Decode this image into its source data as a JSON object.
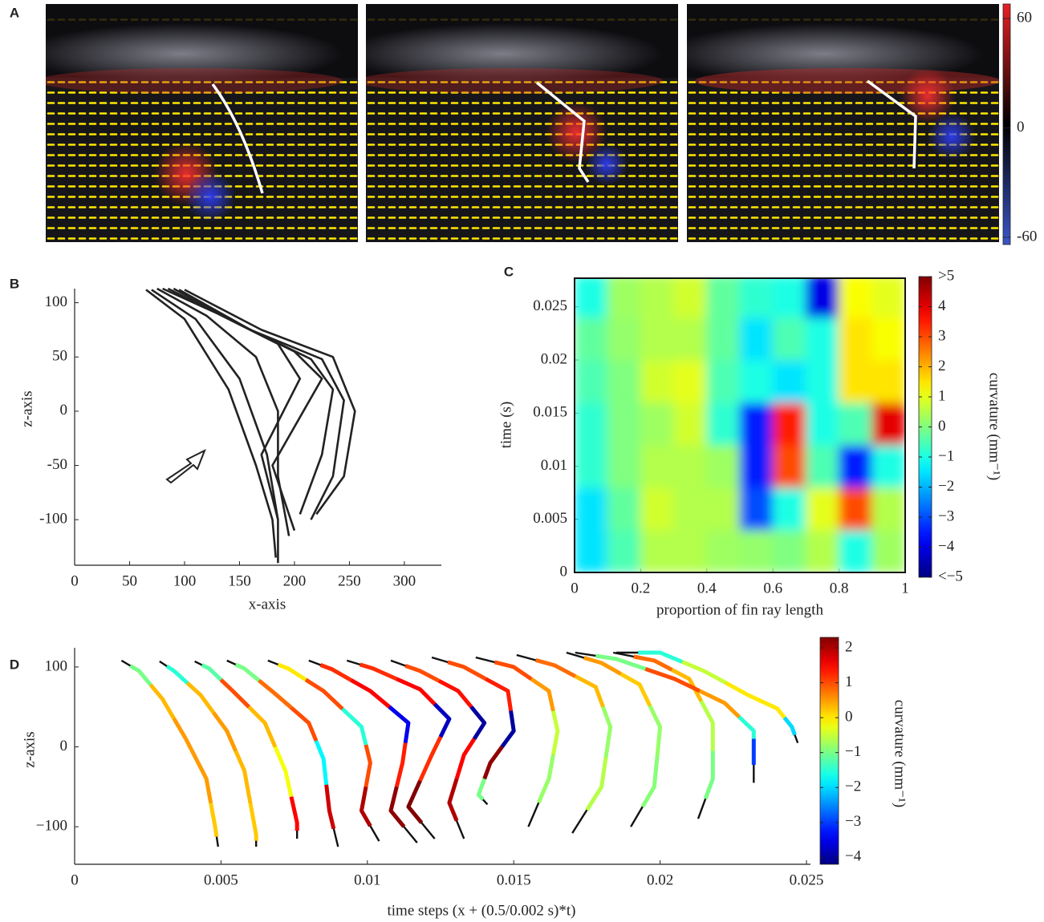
{
  "chart_data": [
    {
      "type": "image",
      "panel": "A",
      "colorbar": {
        "zlim": [
          -64,
          68
        ],
        "ticks": [
          60,
          0,
          -60
        ],
        "colors": [
          "#3a55c8",
          "#000000",
          "#e82024"
        ]
      }
    },
    {
      "type": "line",
      "panel": "B",
      "color": "#222222",
      "xlabel": "x-axis",
      "ylabel": "z-axis",
      "xlim": [
        0,
        330
      ],
      "ylim": [
        -142,
        113
      ],
      "xticks": [
        0,
        50,
        100,
        150,
        200,
        250,
        300
      ],
      "yticks": [
        -100,
        -50,
        0,
        50,
        100
      ],
      "series": [
        {
          "x": [
            65,
            100,
            140,
            165,
            180,
            183
          ],
          "values": [
            112,
            85,
            20,
            -50,
            -100,
            -135
          ]
        },
        {
          "x": [
            70,
            110,
            150,
            175,
            185,
            185
          ],
          "values": [
            112,
            85,
            30,
            -40,
            -100,
            -140
          ]
        },
        {
          "x": [
            75,
            120,
            165,
            185,
            185,
            195
          ],
          "values": [
            113,
            88,
            50,
            0,
            -60,
            -115
          ]
        },
        {
          "x": [
            80,
            130,
            185,
            205,
            170,
            185
          ],
          "values": [
            113,
            90,
            62,
            30,
            -40,
            -100
          ]
        },
        {
          "x": [
            85,
            140,
            200,
            225,
            180,
            200
          ],
          "values": [
            113,
            85,
            55,
            30,
            -50,
            -110
          ]
        },
        {
          "x": [
            90,
            150,
            215,
            235,
            225,
            205
          ],
          "values": [
            113,
            80,
            48,
            20,
            -40,
            -95
          ]
        },
        {
          "x": [
            95,
            160,
            225,
            245,
            235,
            215
          ],
          "values": [
            112,
            75,
            48,
            10,
            -60,
            -100
          ]
        },
        {
          "x": [
            100,
            170,
            235,
            255,
            245,
            220
          ],
          "values": [
            112,
            75,
            50,
            0,
            -60,
            -95
          ]
        }
      ]
    },
    {
      "type": "heatmap",
      "panel": "C",
      "xlabel": "proportion of fin ray length",
      "ylabel": "time (s)",
      "colorbar_label": "curvature (mm⁻¹)",
      "xlim": [
        0,
        1
      ],
      "ylim": [
        0,
        0.0277
      ],
      "xticks": [
        0,
        0.2,
        0.4,
        0.6,
        0.8,
        1
      ],
      "yticks": [
        0,
        0.005,
        0.01,
        0.015,
        0.02,
        0.025
      ],
      "x": [
        0.05,
        0.15,
        0.25,
        0.35,
        0.45,
        0.55,
        0.65,
        0.75,
        0.85,
        0.95
      ],
      "y": [
        0.002,
        0.006,
        0.01,
        0.014,
        0.018,
        0.022,
        0.026
      ],
      "z": [
        [
          -1.5,
          -0.5,
          0.5,
          0.5,
          0.3,
          0.2,
          0,
          0.5,
          -1,
          0.3
        ],
        [
          -1.5,
          -0.3,
          0.8,
          0.5,
          0.5,
          -3,
          -1,
          1,
          3,
          0.5
        ],
        [
          -0.8,
          0,
          0.5,
          0.5,
          0.3,
          -3.5,
          3,
          -0.5,
          -3.5,
          -1
        ],
        [
          -0.8,
          0,
          0.3,
          0.8,
          -0.8,
          -3.5,
          3.5,
          -1,
          -0.5,
          4
        ],
        [
          -0.5,
          0,
          0.8,
          1,
          -0.5,
          -1,
          -1.5,
          -1,
          1.5,
          1.5
        ],
        [
          -0.3,
          0.2,
          0.5,
          0.5,
          -0.3,
          -1.5,
          -0.5,
          -1,
          1.5,
          1.2
        ],
        [
          -1,
          0.3,
          0.5,
          0.8,
          -0.3,
          -0.8,
          -1,
          -4,
          1.2,
          1
        ]
      ],
      "zlim": [
        -5,
        5
      ],
      "zticks": [
        {
          "value": 5,
          "label": ">5"
        },
        4,
        3,
        2,
        1,
        0,
        {
          "value": -1,
          "label": "−1"
        },
        {
          "value": -2,
          "label": "−2"
        },
        {
          "value": -3,
          "label": "−3"
        },
        {
          "value": -4,
          "label": "−4"
        },
        {
          "value": -5,
          "label": "<−5"
        }
      ]
    },
    {
      "type": "colored_line",
      "panel": "D",
      "line_color": "#111111",
      "xlabel": "time steps (x + (0.5/0.002 s)*t)",
      "ylabel": "z-axis",
      "colorbar_label": "curvature (mm⁻¹)",
      "xlim": [
        0,
        0.025
      ],
      "ylim": [
        -147,
        124
      ],
      "xticks": [
        0,
        0.005,
        0.01,
        0.015,
        0.02,
        0.025
      ],
      "yticks": [
        {
          "value": -100,
          "label": "−100"
        },
        0,
        100
      ],
      "zlim": [
        -4.2,
        2.3
      ],
      "zticks": [
        2,
        1,
        0,
        {
          "value": -1,
          "label": "−1"
        },
        {
          "value": -2,
          "label": "−2"
        },
        {
          "value": -3,
          "label": "−3"
        },
        {
          "value": -4,
          "label": "−4"
        }
      ],
      "series": [
        {
          "x": [
            0.0016,
            0.0022,
            0.003,
            0.0038,
            0.0045,
            0.0048,
            0.0049
          ],
          "values": [
            108,
            95,
            60,
            10,
            -40,
            -100,
            -125
          ],
          "curvature": [
            null,
            -1,
            0.3,
            0.5,
            0.5,
            0.2,
            null
          ]
        },
        {
          "x": [
            0.0029,
            0.0034,
            0.0043,
            0.0052,
            0.0058,
            0.0062,
            0.0062
          ],
          "values": [
            107,
            95,
            65,
            20,
            -30,
            -110,
            -125
          ],
          "curvature": [
            null,
            -1.5,
            0.3,
            0.5,
            0.3,
            0.2,
            null
          ]
        },
        {
          "x": [
            0.0041,
            0.0046,
            0.0054,
            0.0065,
            0.0072,
            0.0076,
            0.0076
          ],
          "values": [
            107,
            98,
            70,
            30,
            -30,
            -95,
            -115
          ],
          "curvature": [
            null,
            -1.2,
            1,
            0.3,
            -0.2,
            1.5,
            null
          ]
        },
        {
          "x": [
            0.0052,
            0.0058,
            0.0068,
            0.008,
            0.0085,
            0.0087,
            0.009
          ],
          "values": [
            108,
            98,
            68,
            30,
            -15,
            -80,
            -125
          ],
          "curvature": [
            null,
            -1,
            0.8,
            1,
            -1.8,
            1.8,
            null
          ]
        },
        {
          "x": [
            0.0066,
            0.0073,
            0.0085,
            0.0098,
            0.0101,
            0.0098,
            0.0104
          ],
          "values": [
            108,
            98,
            70,
            25,
            -20,
            -80,
            -118
          ],
          "curvature": [
            null,
            0,
            1,
            -1.5,
            1,
            2,
            null
          ]
        },
        {
          "x": [
            0.008,
            0.0088,
            0.0101,
            0.0114,
            0.0112,
            0.0108,
            0.0117
          ],
          "values": [
            108,
            97,
            70,
            30,
            -20,
            -80,
            -120
          ],
          "curvature": [
            null,
            1.2,
            1.5,
            -3.5,
            1.3,
            2.2,
            null
          ]
        },
        {
          "x": [
            0.0093,
            0.0102,
            0.0118,
            0.0128,
            0.0122,
            0.0114,
            0.0123
          ],
          "values": [
            108,
            98,
            72,
            35,
            -10,
            -75,
            -115
          ],
          "curvature": [
            null,
            1.2,
            1.5,
            -3.8,
            1.2,
            2.5,
            null
          ]
        },
        {
          "x": [
            0.0108,
            0.0118,
            0.0131,
            0.014,
            0.0133,
            0.0128,
            0.0133
          ],
          "values": [
            108,
            95,
            70,
            30,
            -10,
            -70,
            -115
          ],
          "curvature": [
            null,
            1,
            1.4,
            -4,
            1.5,
            2,
            null
          ]
        },
        {
          "x": [
            0.0122,
            0.0133,
            0.0148,
            0.015,
            0.0142,
            0.0138,
            0.0141
          ],
          "values": [
            112,
            100,
            70,
            20,
            -20,
            -60,
            -72
          ],
          "curvature": [
            null,
            1,
            1.3,
            -4,
            2.2,
            -1,
            null
          ]
        },
        {
          "x": [
            0.0137,
            0.015,
            0.0162,
            0.0165,
            0.0162,
            0.0155
          ],
          "values": [
            112,
            100,
            70,
            20,
            -40,
            -100
          ],
          "curvature": [
            null,
            1,
            0.5,
            -0.5,
            -0.8,
            null
          ]
        },
        {
          "x": [
            0.0151,
            0.0164,
            0.0178,
            0.0183,
            0.018,
            0.017
          ],
          "values": [
            115,
            102,
            75,
            25,
            -50,
            -108
          ],
          "curvature": [
            null,
            0.8,
            0.3,
            -0.8,
            -0.6,
            null
          ]
        },
        {
          "x": [
            0.0168,
            0.018,
            0.0193,
            0.02,
            0.0198,
            0.019
          ],
          "values": [
            118,
            105,
            78,
            25,
            -50,
            -100
          ],
          "curvature": [
            null,
            0.5,
            0.2,
            -0.8,
            -0.9,
            null
          ]
        },
        {
          "x": [
            0.0184,
            0.0198,
            0.021,
            0.0218,
            0.0218,
            0.0213
          ],
          "values": [
            118,
            108,
            85,
            30,
            -40,
            -90
          ],
          "curvature": [
            null,
            0.8,
            0.3,
            -0.6,
            -1,
            null
          ]
        },
        {
          "x": [
            0.0171,
            0.0185,
            0.0205,
            0.0222,
            0.0232,
            0.0232,
            0.0232
          ],
          "values": [
            118,
            110,
            85,
            55,
            20,
            0,
            -45
          ],
          "curvature": [
            null,
            -1,
            1,
            0.5,
            -1.5,
            -3,
            null
          ]
        },
        {
          "x": [
            0.0185,
            0.02,
            0.0215,
            0.023,
            0.024,
            0.0245,
            0.0247
          ],
          "values": [
            118,
            118,
            95,
            65,
            48,
            25,
            5
          ],
          "curvature": [
            null,
            -1.5,
            -0.5,
            0,
            0,
            -2,
            null
          ]
        }
      ]
    }
  ]
}
